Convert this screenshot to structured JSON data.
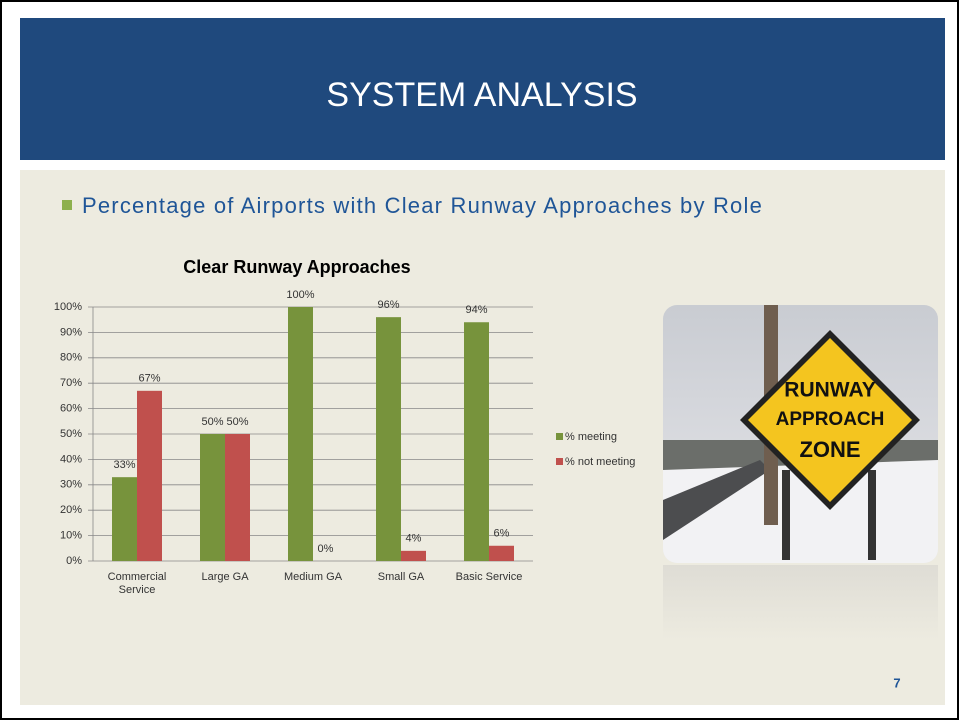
{
  "slide": {
    "title": "SYSTEM ANALYSIS",
    "bullet": "Percentage of Airports with Clear Runway Approaches by Role",
    "page_number": "7"
  },
  "photo": {
    "sign_lines": [
      "RUNWAY",
      "APPROACH",
      "ZONE"
    ]
  },
  "chart_data": {
    "type": "bar",
    "title": "Clear Runway Approaches",
    "categories": [
      "Commercial Service",
      "Large GA",
      "Medium GA",
      "Small GA",
      "Basic Service"
    ],
    "series": [
      {
        "name": "% meeting",
        "color": "#77933c",
        "values": [
          33,
          50,
          100,
          96,
          94
        ],
        "value_labels": [
          "33%",
          "50%",
          "100%",
          "96%",
          "94%"
        ]
      },
      {
        "name": "% not meeting",
        "color": "#c0504d",
        "values": [
          67,
          50,
          0,
          4,
          6
        ],
        "value_labels": [
          "67%",
          "50%",
          "0%",
          "4%",
          "6%"
        ]
      }
    ],
    "ylim": [
      0,
      100
    ],
    "yticks": [
      {
        "value": 0,
        "label": "0%"
      },
      {
        "value": 10,
        "label": "10%"
      },
      {
        "value": 20,
        "label": "20%"
      },
      {
        "value": 30,
        "label": "30%"
      },
      {
        "value": 40,
        "label": "40%"
      },
      {
        "value": 50,
        "label": "50%"
      },
      {
        "value": 60,
        "label": "60%"
      },
      {
        "value": 70,
        "label": "70%"
      },
      {
        "value": 80,
        "label": "80%"
      },
      {
        "value": 90,
        "label": "90%"
      },
      {
        "value": 100,
        "label": "100%"
      }
    ],
    "grid": true,
    "legend": "right"
  }
}
